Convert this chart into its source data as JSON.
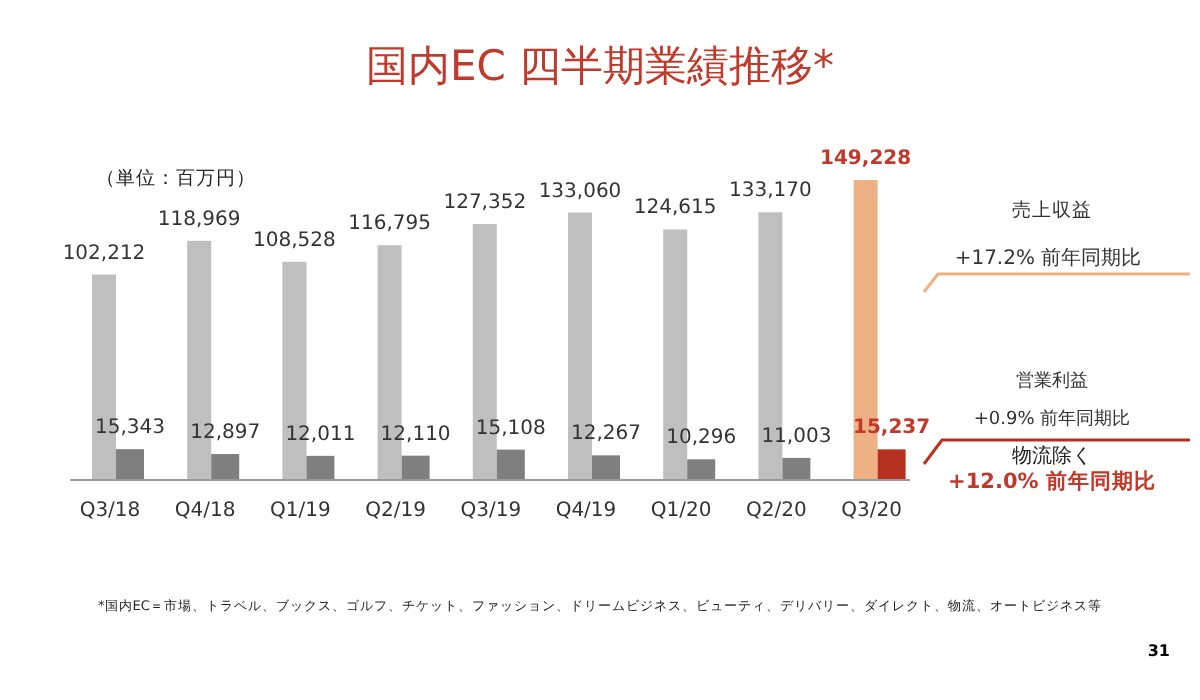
{
  "chart_data": {
    "type": "bar",
    "title": "国内EC 四半期業績推移*",
    "categories": [
      "Q3/18",
      "Q4/18",
      "Q1/19",
      "Q2/19",
      "Q3/19",
      "Q4/19",
      "Q1/20",
      "Q2/20",
      "Q3/20"
    ],
    "series": [
      {
        "name": "売上収益",
        "values": [
          102212,
          118969,
          108528,
          116795,
          127352,
          133060,
          124615,
          133170,
          149228
        ],
        "value_labels": [
          "102,212",
          "118,969",
          "108,528",
          "116,795",
          "127,352",
          "133,060",
          "124,615",
          "133,170",
          "149,228"
        ],
        "colors": [
          "#bfbfbf",
          "#bfbfbf",
          "#bfbfbf",
          "#bfbfbf",
          "#bfbfbf",
          "#bfbfbf",
          "#bfbfbf",
          "#bfbfbf",
          "#eeb184"
        ]
      },
      {
        "name": "営業利益",
        "values": [
          15343,
          12897,
          12011,
          12110,
          15108,
          12267,
          10296,
          11003,
          15237
        ],
        "value_labels": [
          "15,343",
          "12,897",
          "12,011",
          "12,110",
          "15,108",
          "12,267",
          "10,296",
          "11,003",
          "15,237"
        ],
        "colors": [
          "#7f7f7f",
          "#7f7f7f",
          "#7f7f7f",
          "#7f7f7f",
          "#7f7f7f",
          "#7f7f7f",
          "#7f7f7f",
          "#7f7f7f",
          "#b8301f"
        ]
      }
    ],
    "annotations": [
      "（単位：百万円）",
      "+17.2% 前年同期比",
      "+0.9% 前年同期比",
      "物流除く",
      "+12.0% 前年同期比",
      "*国内EC＝市場、トラベル、ブックス、ゴルフ、チケット、ファッション、ドリームビジネス、ビューティ、デリバリー、ダイレクト、物流、オートビジネス等",
      "31"
    ]
  }
}
